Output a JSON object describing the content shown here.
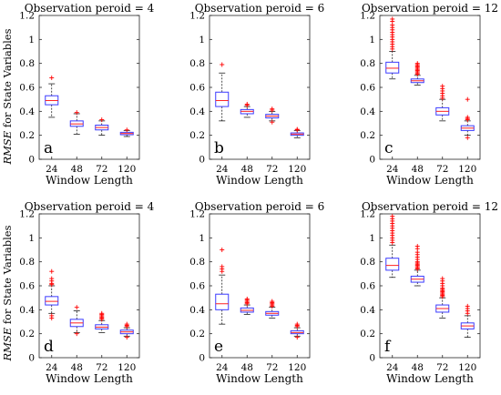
{
  "figure": {
    "ylabel_italic": "RMSE",
    "ylabel_rest": " for State Variables"
  },
  "colors": {
    "box": "#3b3bff",
    "median": "#ff2020",
    "outlier": "#ff0000",
    "whisker": "#000000"
  },
  "chart_data": [
    {
      "type": "boxplot",
      "title": "Observation peroid = 4",
      "xlabel": "Window Length",
      "ylabel": "RMSE for State Variables",
      "panel_label": "a",
      "categories": [
        "24",
        "48",
        "72",
        "120"
      ],
      "ylim": [
        0,
        1.2
      ],
      "yticks": [
        "0",
        "0.2",
        "0.4",
        "0.6",
        "0.8",
        "1",
        "1.2"
      ],
      "boxes": [
        {
          "min": 0.35,
          "q1": 0.455,
          "median": 0.49,
          "q3": 0.53,
          "max": 0.63,
          "outliers": [
            0.68
          ]
        },
        {
          "min": 0.21,
          "q1": 0.275,
          "median": 0.295,
          "q3": 0.32,
          "max": 0.38,
          "outliers": [
            0.39
          ]
        },
        {
          "min": 0.2,
          "q1": 0.245,
          "median": 0.265,
          "q3": 0.285,
          "max": 0.32,
          "outliers": [
            0.33
          ]
        },
        {
          "min": 0.19,
          "q1": 0.205,
          "median": 0.215,
          "q3": 0.225,
          "max": 0.24,
          "outliers": [
            0.245
          ]
        }
      ]
    },
    {
      "type": "boxplot",
      "title": "Observation peroid = 6",
      "xlabel": "Window Length",
      "ylabel": "",
      "panel_label": "b",
      "categories": [
        "24",
        "48",
        "72",
        "120"
      ],
      "ylim": [
        0,
        1.2
      ],
      "yticks": [
        "0",
        "0.2",
        "0.4",
        "0.6",
        "0.8",
        "1",
        "1.2"
      ],
      "boxes": [
        {
          "min": 0.32,
          "q1": 0.44,
          "median": 0.49,
          "q3": 0.56,
          "max": 0.72,
          "outliers": [
            0.79
          ]
        },
        {
          "min": 0.35,
          "q1": 0.38,
          "median": 0.4,
          "q3": 0.415,
          "max": 0.44,
          "outliers": [
            0.45,
            0.46
          ]
        },
        {
          "min": 0.32,
          "q1": 0.345,
          "median": 0.36,
          "q3": 0.375,
          "max": 0.4,
          "outliers": [
            0.41,
            0.42,
            0.31
          ]
        },
        {
          "min": 0.18,
          "q1": 0.2,
          "median": 0.21,
          "q3": 0.22,
          "max": 0.24,
          "outliers": [
            0.245,
            0.25
          ]
        }
      ]
    },
    {
      "type": "boxplot",
      "title": "Observation peroid = 12",
      "xlabel": "Window Length",
      "ylabel": "",
      "panel_label": "c",
      "categories": [
        "24",
        "48",
        "72",
        "120"
      ],
      "ylim": [
        0,
        1.2
      ],
      "yticks": [
        "0",
        "0.2",
        "0.4",
        "0.6",
        "0.8",
        "1",
        "1.2"
      ],
      "boxes": [
        {
          "min": 0.67,
          "q1": 0.72,
          "median": 0.76,
          "q3": 0.81,
          "max": 0.9,
          "outliers": [
            0.92,
            0.94,
            0.96,
            0.98,
            1.0,
            1.02,
            1.04,
            1.06,
            1.08,
            1.1,
            1.12,
            1.15,
            1.17
          ]
        },
        {
          "min": 0.62,
          "q1": 0.64,
          "median": 0.655,
          "q3": 0.67,
          "max": 0.7,
          "outliers": [
            0.71,
            0.72,
            0.73,
            0.74,
            0.75,
            0.76,
            0.77,
            0.78,
            0.79,
            0.8
          ]
        },
        {
          "min": 0.32,
          "q1": 0.37,
          "median": 0.4,
          "q3": 0.43,
          "max": 0.5,
          "outliers": [
            0.51,
            0.53,
            0.55,
            0.57,
            0.59,
            0.61
          ]
        },
        {
          "min": 0.2,
          "q1": 0.24,
          "median": 0.26,
          "q3": 0.28,
          "max": 0.32,
          "outliers": [
            0.33,
            0.34,
            0.35,
            0.5,
            0.18
          ]
        }
      ]
    },
    {
      "type": "boxplot",
      "title": "Observation peroid = 4",
      "xlabel": "Window Length",
      "ylabel": "RMSE for State Variables",
      "panel_label": "d",
      "categories": [
        "24",
        "48",
        "72",
        "120"
      ],
      "ylim": [
        0,
        1.2
      ],
      "yticks": [
        "0",
        "0.2",
        "0.4",
        "0.6",
        "0.8",
        "1",
        "1.2"
      ],
      "boxes": [
        {
          "min": 0.37,
          "q1": 0.44,
          "median": 0.47,
          "q3": 0.51,
          "max": 0.6,
          "outliers": [
            0.61,
            0.62,
            0.64,
            0.66,
            0.72,
            0.35,
            0.33
          ]
        },
        {
          "min": 0.21,
          "q1": 0.26,
          "median": 0.29,
          "q3": 0.32,
          "max": 0.39,
          "outliers": [
            0.42,
            0.2
          ]
        },
        {
          "min": 0.21,
          "q1": 0.24,
          "median": 0.255,
          "q3": 0.275,
          "max": 0.31,
          "outliers": [
            0.32,
            0.33,
            0.34,
            0.35,
            0.36,
            0.37
          ]
        },
        {
          "min": 0.18,
          "q1": 0.2,
          "median": 0.215,
          "q3": 0.23,
          "max": 0.25,
          "outliers": [
            0.26,
            0.27,
            0.28,
            0.17
          ]
        }
      ]
    },
    {
      "type": "boxplot",
      "title": "Observation peroid = 6",
      "xlabel": "Window Length",
      "ylabel": "",
      "panel_label": "e",
      "categories": [
        "24",
        "48",
        "72",
        "120"
      ],
      "ylim": [
        0,
        1.2
      ],
      "yticks": [
        "0",
        "0.2",
        "0.4",
        "0.6",
        "0.8",
        "1",
        "1.2"
      ],
      "boxes": [
        {
          "min": 0.28,
          "q1": 0.4,
          "median": 0.45,
          "q3": 0.53,
          "max": 0.69,
          "outliers": [
            0.72,
            0.74,
            0.76,
            0.9
          ]
        },
        {
          "min": 0.36,
          "q1": 0.38,
          "median": 0.395,
          "q3": 0.415,
          "max": 0.44,
          "outliers": [
            0.45,
            0.46,
            0.47,
            0.48,
            0.49
          ]
        },
        {
          "min": 0.33,
          "q1": 0.355,
          "median": 0.37,
          "q3": 0.385,
          "max": 0.42,
          "outliers": [
            0.43,
            0.44,
            0.45,
            0.46,
            0.47
          ]
        },
        {
          "min": 0.18,
          "q1": 0.2,
          "median": 0.21,
          "q3": 0.225,
          "max": 0.25,
          "outliers": [
            0.26,
            0.27,
            0.28,
            0.17
          ]
        }
      ]
    },
    {
      "type": "boxplot",
      "title": "Observation peroid = 12",
      "xlabel": "Window Length",
      "ylabel": "",
      "panel_label": "f",
      "categories": [
        "24",
        "48",
        "72",
        "120"
      ],
      "ylim": [
        0,
        1.2
      ],
      "yticks": [
        "0",
        "0.2",
        "0.4",
        "0.6",
        "0.8",
        "1",
        "1.2"
      ],
      "boxes": [
        {
          "min": 0.67,
          "q1": 0.73,
          "median": 0.77,
          "q3": 0.83,
          "max": 0.94,
          "outliers": [
            0.96,
            0.98,
            1.0,
            1.02,
            1.04,
            1.06,
            1.08,
            1.1,
            1.12,
            1.14,
            1.16,
            1.18
          ]
        },
        {
          "min": 0.6,
          "q1": 0.63,
          "median": 0.655,
          "q3": 0.68,
          "max": 0.73,
          "outliers": [
            0.74,
            0.75,
            0.76,
            0.77,
            0.78,
            0.79,
            0.8,
            0.82,
            0.84,
            0.86,
            0.88,
            0.91,
            0.93
          ]
        },
        {
          "min": 0.33,
          "q1": 0.38,
          "median": 0.41,
          "q3": 0.44,
          "max": 0.5,
          "outliers": [
            0.51,
            0.52,
            0.53,
            0.54,
            0.55,
            0.56,
            0.57,
            0.58,
            0.6,
            0.62,
            0.64,
            0.66
          ]
        },
        {
          "min": 0.17,
          "q1": 0.24,
          "median": 0.265,
          "q3": 0.29,
          "max": 0.35,
          "outliers": [
            0.37,
            0.39,
            0.41,
            0.43
          ]
        }
      ]
    }
  ]
}
